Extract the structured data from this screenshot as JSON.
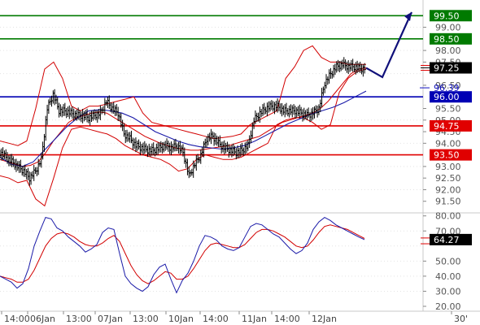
{
  "chart_data": [
    {
      "type": "line",
      "subtype": "ohlc",
      "y_range": [
        91.0,
        100.0
      ],
      "y_ticks": [
        "99.00",
        "98.00",
        "97.50",
        "96.50",
        "95.50",
        "95.00",
        "94.50",
        "94.00",
        "93.00",
        "92.50",
        "92.00",
        "91.50"
      ],
      "hidden_tick": "97.00",
      "x_tick_labels": [
        "14:00",
        "06Jan",
        "13:00",
        "07Jan",
        "13:00",
        "10Jan",
        "14:00",
        "11Jan",
        "14:00",
        "12Jan",
        "30'"
      ],
      "horizontal_levels": [
        {
          "value": 99.5,
          "label": "99.50",
          "color": "#007a00"
        },
        {
          "value": 98.5,
          "label": "98.50",
          "color": "#007a00"
        },
        {
          "value": 96.0,
          "label": "96.00",
          "color": "#0000b4"
        },
        {
          "value": 94.75,
          "label": "94.75",
          "color": "#e00000"
        },
        {
          "value": 93.5,
          "label": "93.50",
          "color": "#e00000"
        }
      ],
      "markers": [
        {
          "value": 97.25,
          "label": "97.25",
          "color": "#000000"
        },
        {
          "value": 96.39,
          "label": "96.39",
          "color": "#1010c0"
        }
      ],
      "price": [
        93.6,
        93.4,
        93.2,
        93.0,
        92.8,
        92.5,
        92.8,
        93.3,
        95.5,
        96.1,
        95.4,
        95.4,
        95.3,
        95.2,
        95.2,
        95.1,
        95.2,
        95.3,
        95.8,
        95.5,
        95.3,
        94.4,
        94.2,
        93.9,
        93.8,
        93.7,
        93.7,
        93.8,
        93.9,
        93.8,
        93.9,
        93.6,
        92.6,
        93.1,
        93.5,
        94.2,
        94.3,
        94.0,
        93.8,
        93.7,
        93.6,
        93.7,
        93.9,
        95.0,
        95.3,
        95.5,
        95.6,
        95.6,
        95.4,
        95.4,
        95.4,
        95.3,
        95.2,
        95.3,
        95.5,
        96.6,
        97.0,
        97.3,
        97.4,
        97.3,
        97.3,
        97.2,
        97.25
      ],
      "middle_band": [
        93.3,
        93.2,
        93.1,
        93.0,
        93.05,
        93.2,
        93.6,
        94.1,
        94.5,
        94.9,
        95.1,
        95.2,
        95.3,
        95.35,
        95.3,
        95.1,
        94.9,
        94.7,
        94.5,
        94.3,
        94.15,
        94.0,
        93.9,
        93.8,
        93.75,
        93.7,
        93.7,
        93.75,
        93.8,
        93.85,
        93.9,
        94.0,
        94.1,
        94.2,
        94.3,
        94.5,
        94.7,
        94.9,
        95.0,
        95.1,
        95.2,
        95.3,
        95.5,
        95.8,
        96.2,
        96.6,
        97.0,
        97.2,
        97.25
      ],
      "upper_band": [
        94.1,
        94.0,
        93.9,
        94.1,
        95.5,
        97.2,
        97.5,
        96.8,
        95.6,
        95.4,
        95.6,
        95.6,
        95.7,
        95.8,
        95.9,
        96.0,
        95.3,
        94.9,
        94.8,
        94.7,
        94.6,
        94.5,
        94.4,
        94.3,
        94.2,
        94.25,
        94.3,
        94.4,
        94.8,
        95.0,
        95.2,
        95.4,
        96.8,
        97.3,
        98.0,
        98.2,
        97.7,
        97.5,
        97.5,
        97.4,
        97.4,
        97.4
      ],
      "lower_band": [
        92.6,
        92.5,
        92.3,
        92.4,
        91.6,
        91.3,
        92.5,
        93.8,
        94.6,
        94.7,
        94.6,
        94.5,
        94.4,
        94.2,
        93.9,
        93.7,
        93.5,
        93.4,
        93.3,
        93.1,
        92.8,
        92.9,
        93.3,
        93.5,
        93.4,
        93.3,
        93.3,
        93.4,
        93.6,
        93.8,
        94.0,
        94.8,
        95.0,
        95.1,
        95.1,
        94.9,
        94.6,
        94.8,
        96.2,
        96.8,
        97.1,
        97.2
      ],
      "moving_average": [
        93.4,
        93.1,
        93.0,
        93.2,
        93.7,
        94.2,
        94.7,
        95.1,
        95.4,
        95.45,
        95.4,
        95.3,
        95.1,
        94.8,
        94.5,
        94.3,
        94.1,
        93.95,
        93.85,
        93.8,
        93.75,
        93.8,
        93.9,
        94.1,
        94.35,
        94.6,
        94.85,
        95.05,
        95.25,
        95.4,
        95.55,
        95.75,
        96.0,
        96.25
      ],
      "forecast_arrow": [
        [
          97.3,
          97.25
        ],
        [
          97.45,
          96.85
        ],
        [
          97.95,
          99.65
        ]
      ],
      "forecast_dashes": [
        [
          97.15,
          96.8
        ],
        [
          96.2,
          96.8
        ]
      ]
    },
    {
      "type": "line",
      "y_range": [
        20,
        82
      ],
      "y_ticks": [
        "80.00",
        "70.00",
        "50.00",
        "40.00",
        "30.00",
        "20.00"
      ],
      "hidden_ticks": [
        "60.00"
      ],
      "marker": {
        "value": 64.27,
        "label": "64.27",
        "color": "#000000"
      },
      "signal_line_value": 61.5,
      "main_series": [
        40,
        38,
        36,
        32,
        35,
        45,
        60,
        70,
        79,
        78,
        72,
        70,
        66,
        63,
        60,
        56,
        58,
        61,
        69,
        72,
        71,
        55,
        40,
        35,
        32,
        30,
        33,
        41,
        46,
        48,
        38,
        29,
        37,
        42,
        50,
        60,
        67,
        66,
        64,
        60,
        58,
        57,
        59,
        66,
        73,
        75,
        74,
        71,
        68,
        66,
        62,
        58,
        55,
        57,
        62,
        71,
        76,
        79,
        77,
        74,
        72,
        70,
        68,
        66,
        64.27
      ],
      "signal_series": [
        40,
        39,
        38,
        36,
        36,
        38,
        44,
        52,
        60,
        65,
        68,
        69,
        68,
        66,
        63,
        61,
        60,
        60,
        62,
        65,
        67,
        63,
        55,
        47,
        41,
        37,
        35,
        37,
        40,
        43,
        42,
        38,
        38,
        40,
        45,
        51,
        57,
        61,
        62,
        61,
        60,
        59,
        59,
        61,
        65,
        69,
        71,
        71,
        70,
        68,
        66,
        63,
        60,
        59,
        60,
        64,
        69,
        73,
        74,
        73,
        72,
        71,
        69,
        67,
        65
      ]
    }
  ]
}
